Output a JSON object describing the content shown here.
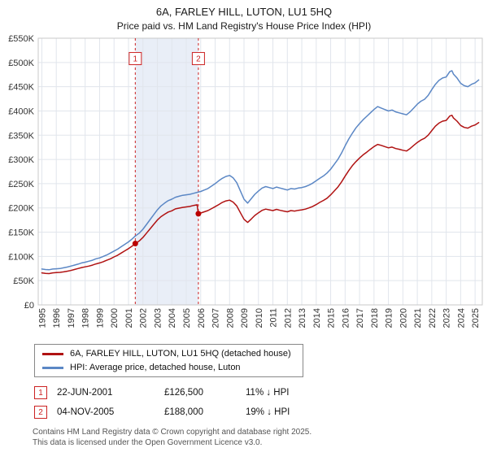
{
  "title": "6A, FARLEY HILL, LUTON, LU1 5HQ",
  "subtitle": "Price paid vs. HM Land Registry's House Price Index (HPI)",
  "chart_data": {
    "type": "line",
    "x_range": [
      1994.75,
      2025.5
    ],
    "y_range": [
      0,
      550000
    ],
    "x_ticks": [
      1995,
      1996,
      1997,
      1998,
      1999,
      2000,
      2001,
      2002,
      2003,
      2004,
      2005,
      2006,
      2007,
      2008,
      2009,
      2010,
      2011,
      2012,
      2013,
      2014,
      2015,
      2016,
      2017,
      2018,
      2019,
      2020,
      2021,
      2022,
      2023,
      2024,
      2025
    ],
    "y_ticks": [
      {
        "v": 0,
        "label": "£0"
      },
      {
        "v": 50000,
        "label": "£50K"
      },
      {
        "v": 100000,
        "label": "£100K"
      },
      {
        "v": 150000,
        "label": "£150K"
      },
      {
        "v": 200000,
        "label": "£200K"
      },
      {
        "v": 250000,
        "label": "£250K"
      },
      {
        "v": 300000,
        "label": "£300K"
      },
      {
        "v": 350000,
        "label": "£350K"
      },
      {
        "v": 400000,
        "label": "£400K"
      },
      {
        "v": 450000,
        "label": "£450K"
      },
      {
        "v": 500000,
        "label": "£500K"
      },
      {
        "v": 550000,
        "label": "£550K"
      }
    ],
    "colors": {
      "grid": "#e1e5ec",
      "border": "#c8c8c8",
      "shade": "#e9eef7",
      "marker": "#cc2222",
      "dot": "#bb0000"
    },
    "shaded_region": {
      "from": 2001.47,
      "to": 2005.84
    },
    "markers": [
      {
        "label": "1",
        "x": 2001.47,
        "y": 126500
      },
      {
        "label": "2",
        "x": 2005.84,
        "y": 188000
      }
    ],
    "series": [
      {
        "name": "6A, FARLEY HILL, LUTON, LU1 5HQ (detached house)",
        "color": "#b01212",
        "points": [
          [
            1995.0,
            66000
          ],
          [
            1995.25,
            65000
          ],
          [
            1995.5,
            64500
          ],
          [
            1995.75,
            66000
          ],
          [
            1996.0,
            66500
          ],
          [
            1996.25,
            67000
          ],
          [
            1996.5,
            68000
          ],
          [
            1996.75,
            69500
          ],
          [
            1997.0,
            71000
          ],
          [
            1997.25,
            73000
          ],
          [
            1997.5,
            75000
          ],
          [
            1997.75,
            77000
          ],
          [
            1998.0,
            78500
          ],
          [
            1998.25,
            80000
          ],
          [
            1998.5,
            82000
          ],
          [
            1998.75,
            84500
          ],
          [
            1999.0,
            86500
          ],
          [
            1999.25,
            89000
          ],
          [
            1999.5,
            92000
          ],
          [
            1999.75,
            95000
          ],
          [
            2000.0,
            99000
          ],
          [
            2000.25,
            102500
          ],
          [
            2000.5,
            107000
          ],
          [
            2000.75,
            111500
          ],
          [
            2001.0,
            116000
          ],
          [
            2001.25,
            121000
          ],
          [
            2001.47,
            126500
          ],
          [
            2001.75,
            132000
          ],
          [
            2002.0,
            139000
          ],
          [
            2002.25,
            148000
          ],
          [
            2002.5,
            157000
          ],
          [
            2002.75,
            166000
          ],
          [
            2003.0,
            175000
          ],
          [
            2003.25,
            182000
          ],
          [
            2003.5,
            187000
          ],
          [
            2003.75,
            191500
          ],
          [
            2004.0,
            194000
          ],
          [
            2004.25,
            198000
          ],
          [
            2004.5,
            199500
          ],
          [
            2004.75,
            201000
          ],
          [
            2005.0,
            202000
          ],
          [
            2005.25,
            203000
          ],
          [
            2005.5,
            205000
          ],
          [
            2005.75,
            206500
          ],
          [
            2005.84,
            188000
          ],
          [
            2006.0,
            189500
          ],
          [
            2006.25,
            192000
          ],
          [
            2006.5,
            194500
          ],
          [
            2006.75,
            198500
          ],
          [
            2007.0,
            202500
          ],
          [
            2007.25,
            207000
          ],
          [
            2007.5,
            211500
          ],
          [
            2007.75,
            214500
          ],
          [
            2008.0,
            216000
          ],
          [
            2008.25,
            212000
          ],
          [
            2008.5,
            204000
          ],
          [
            2008.75,
            190000
          ],
          [
            2009.0,
            176500
          ],
          [
            2009.25,
            170000
          ],
          [
            2009.5,
            177000
          ],
          [
            2009.75,
            184500
          ],
          [
            2010.0,
            190000
          ],
          [
            2010.25,
            195000
          ],
          [
            2010.5,
            197500
          ],
          [
            2010.75,
            196000
          ],
          [
            2011.0,
            194500
          ],
          [
            2011.25,
            197000
          ],
          [
            2011.5,
            195000
          ],
          [
            2011.75,
            193500
          ],
          [
            2012.0,
            192000
          ],
          [
            2012.25,
            194500
          ],
          [
            2012.5,
            193500
          ],
          [
            2012.75,
            195000
          ],
          [
            2013.0,
            196000
          ],
          [
            2013.25,
            197500
          ],
          [
            2013.5,
            200000
          ],
          [
            2013.75,
            203000
          ],
          [
            2014.0,
            207000
          ],
          [
            2014.25,
            211500
          ],
          [
            2014.5,
            215500
          ],
          [
            2014.75,
            220000
          ],
          [
            2015.0,
            227000
          ],
          [
            2015.25,
            235000
          ],
          [
            2015.5,
            243000
          ],
          [
            2015.75,
            253500
          ],
          [
            2016.0,
            265500
          ],
          [
            2016.25,
            277000
          ],
          [
            2016.5,
            287000
          ],
          [
            2016.75,
            295500
          ],
          [
            2017.0,
            303000
          ],
          [
            2017.25,
            309500
          ],
          [
            2017.5,
            315000
          ],
          [
            2017.75,
            321000
          ],
          [
            2018.0,
            326500
          ],
          [
            2018.25,
            331000
          ],
          [
            2018.5,
            329000
          ],
          [
            2018.75,
            326500
          ],
          [
            2019.0,
            324000
          ],
          [
            2019.25,
            325500
          ],
          [
            2019.5,
            322500
          ],
          [
            2019.75,
            321000
          ],
          [
            2020.0,
            319000
          ],
          [
            2020.25,
            317500
          ],
          [
            2020.5,
            322500
          ],
          [
            2020.75,
            329000
          ],
          [
            2021.0,
            335000
          ],
          [
            2021.25,
            340000
          ],
          [
            2021.5,
            343500
          ],
          [
            2021.75,
            350000
          ],
          [
            2022.0,
            359500
          ],
          [
            2022.25,
            368500
          ],
          [
            2022.5,
            375000
          ],
          [
            2022.75,
            379000
          ],
          [
            2023.0,
            380500
          ],
          [
            2023.25,
            389500
          ],
          [
            2023.4,
            391000
          ],
          [
            2023.5,
            385500
          ],
          [
            2023.75,
            379000
          ],
          [
            2024.0,
            370000
          ],
          [
            2024.25,
            366000
          ],
          [
            2024.5,
            364500
          ],
          [
            2024.75,
            368500
          ],
          [
            2025.0,
            371000
          ],
          [
            2025.25,
            376000
          ]
        ]
      },
      {
        "name": "HPI: Average price, detached house, Luton",
        "color": "#5b87c5",
        "points": [
          [
            1995.0,
            74000
          ],
          [
            1995.25,
            73000
          ],
          [
            1995.5,
            72500
          ],
          [
            1995.75,
            74000
          ],
          [
            1996.0,
            74500
          ],
          [
            1996.25,
            75000
          ],
          [
            1996.5,
            76500
          ],
          [
            1996.75,
            78000
          ],
          [
            1997.0,
            80000
          ],
          [
            1997.25,
            82000
          ],
          [
            1997.5,
            84000
          ],
          [
            1997.75,
            86500
          ],
          [
            1998.0,
            88000
          ],
          [
            1998.25,
            90000
          ],
          [
            1998.5,
            92000
          ],
          [
            1998.75,
            95000
          ],
          [
            1999.0,
            97000
          ],
          [
            1999.25,
            100000
          ],
          [
            1999.5,
            103000
          ],
          [
            1999.75,
            107000
          ],
          [
            2000.0,
            111000
          ],
          [
            2000.25,
            115000
          ],
          [
            2000.5,
            120000
          ],
          [
            2000.75,
            125000
          ],
          [
            2001.0,
            130000
          ],
          [
            2001.25,
            136000
          ],
          [
            2001.47,
            142000
          ],
          [
            2001.75,
            148000
          ],
          [
            2002.0,
            156000
          ],
          [
            2002.25,
            166000
          ],
          [
            2002.5,
            176000
          ],
          [
            2002.75,
            186000
          ],
          [
            2003.0,
            196000
          ],
          [
            2003.25,
            204000
          ],
          [
            2003.5,
            210000
          ],
          [
            2003.75,
            215000
          ],
          [
            2004.0,
            218000
          ],
          [
            2004.25,
            222000
          ],
          [
            2004.5,
            224000
          ],
          [
            2004.75,
            226000
          ],
          [
            2005.0,
            227000
          ],
          [
            2005.25,
            228000
          ],
          [
            2005.5,
            230000
          ],
          [
            2005.75,
            232000
          ],
          [
            2006.0,
            234000
          ],
          [
            2006.25,
            237000
          ],
          [
            2006.5,
            240000
          ],
          [
            2006.75,
            245000
          ],
          [
            2007.0,
            250000
          ],
          [
            2007.25,
            256000
          ],
          [
            2007.5,
            261000
          ],
          [
            2007.75,
            265000
          ],
          [
            2008.0,
            267000
          ],
          [
            2008.25,
            262000
          ],
          [
            2008.5,
            252000
          ],
          [
            2008.75,
            235000
          ],
          [
            2009.0,
            218000
          ],
          [
            2009.25,
            210000
          ],
          [
            2009.5,
            219000
          ],
          [
            2009.75,
            228000
          ],
          [
            2010.0,
            235000
          ],
          [
            2010.25,
            241000
          ],
          [
            2010.5,
            244000
          ],
          [
            2010.75,
            242000
          ],
          [
            2011.0,
            240000
          ],
          [
            2011.25,
            243000
          ],
          [
            2011.5,
            241000
          ],
          [
            2011.75,
            239000
          ],
          [
            2012.0,
            237000
          ],
          [
            2012.25,
            240000
          ],
          [
            2012.5,
            239000
          ],
          [
            2012.75,
            241000
          ],
          [
            2013.0,
            242000
          ],
          [
            2013.25,
            244000
          ],
          [
            2013.5,
            247000
          ],
          [
            2013.75,
            251000
          ],
          [
            2014.0,
            256000
          ],
          [
            2014.25,
            261000
          ],
          [
            2014.5,
            266000
          ],
          [
            2014.75,
            272000
          ],
          [
            2015.0,
            280000
          ],
          [
            2015.25,
            290000
          ],
          [
            2015.5,
            300000
          ],
          [
            2015.75,
            313000
          ],
          [
            2016.0,
            328000
          ],
          [
            2016.25,
            342000
          ],
          [
            2016.5,
            354000
          ],
          [
            2016.75,
            365000
          ],
          [
            2017.0,
            374000
          ],
          [
            2017.25,
            382000
          ],
          [
            2017.5,
            389000
          ],
          [
            2017.75,
            396000
          ],
          [
            2018.0,
            403000
          ],
          [
            2018.25,
            409000
          ],
          [
            2018.5,
            406000
          ],
          [
            2018.75,
            403000
          ],
          [
            2019.0,
            400000
          ],
          [
            2019.25,
            402000
          ],
          [
            2019.5,
            398000
          ],
          [
            2019.75,
            396000
          ],
          [
            2020.0,
            394000
          ],
          [
            2020.25,
            392000
          ],
          [
            2020.5,
            398000
          ],
          [
            2020.75,
            406000
          ],
          [
            2021.0,
            414000
          ],
          [
            2021.25,
            420000
          ],
          [
            2021.5,
            424000
          ],
          [
            2021.75,
            432000
          ],
          [
            2022.0,
            444000
          ],
          [
            2022.25,
            455000
          ],
          [
            2022.5,
            463000
          ],
          [
            2022.75,
            468000
          ],
          [
            2023.0,
            470000
          ],
          [
            2023.25,
            481000
          ],
          [
            2023.4,
            483000
          ],
          [
            2023.5,
            476000
          ],
          [
            2023.75,
            468000
          ],
          [
            2024.0,
            457000
          ],
          [
            2024.25,
            452000
          ],
          [
            2024.5,
            450000
          ],
          [
            2024.75,
            455000
          ],
          [
            2025.0,
            458000
          ],
          [
            2025.25,
            464000
          ]
        ]
      }
    ]
  },
  "legend": {
    "items": [
      {
        "label": "6A, FARLEY HILL, LUTON, LU1 5HQ (detached house)"
      },
      {
        "label": "HPI: Average price, detached house, Luton"
      }
    ]
  },
  "transactions": [
    {
      "num": "1",
      "date": "22-JUN-2001",
      "price": "£126,500",
      "hpi": "11% ↓ HPI"
    },
    {
      "num": "2",
      "date": "04-NOV-2005",
      "price": "£188,000",
      "hpi": "19% ↓ HPI"
    }
  ],
  "footer": {
    "line1": "Contains HM Land Registry data © Crown copyright and database right 2025.",
    "line2": "This data is licensed under the Open Government Licence v3.0."
  }
}
